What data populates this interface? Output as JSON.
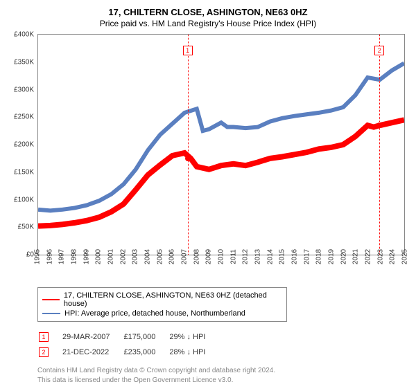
{
  "title": "17, CHILTERN CLOSE, ASHINGTON, NE63 0HZ",
  "subtitle": "Price paid vs. HM Land Registry's House Price Index (HPI)",
  "chart": {
    "type": "line",
    "background_color": "#ffffff",
    "border_color": "#888888",
    "ylim": [
      0,
      400
    ],
    "ytick_step": 50,
    "ytick_prefix": "£",
    "ytick_suffix": "K",
    "xlim": [
      1995,
      2025
    ],
    "xtick_step": 1,
    "grid": false,
    "label_fontsize": 10,
    "title_fontsize": 13,
    "series": [
      {
        "name": "price_paid",
        "label": "17, CHILTERN CLOSE, ASHINGTON, NE63 0HZ (detached house)",
        "color": "#ff0000",
        "line_width": 2,
        "data": [
          [
            1995,
            52
          ],
          [
            1996,
            53
          ],
          [
            1997,
            55
          ],
          [
            1998,
            58
          ],
          [
            1999,
            62
          ],
          [
            2000,
            68
          ],
          [
            2001,
            78
          ],
          [
            2002,
            92
          ],
          [
            2003,
            118
          ],
          [
            2004,
            145
          ],
          [
            2005,
            163
          ],
          [
            2006,
            180
          ],
          [
            2007,
            185
          ],
          [
            2007.5,
            175
          ],
          [
            2008,
            160
          ],
          [
            2009,
            155
          ],
          [
            2010,
            162
          ],
          [
            2011,
            165
          ],
          [
            2012,
            162
          ],
          [
            2013,
            168
          ],
          [
            2014,
            175
          ],
          [
            2015,
            178
          ],
          [
            2016,
            182
          ],
          [
            2017,
            186
          ],
          [
            2018,
            192
          ],
          [
            2019,
            195
          ],
          [
            2020,
            200
          ],
          [
            2021,
            215
          ],
          [
            2022,
            235
          ],
          [
            2022.5,
            232
          ],
          [
            2023,
            235
          ],
          [
            2024,
            240
          ],
          [
            2025,
            245
          ]
        ]
      },
      {
        "name": "hpi",
        "label": "HPI: Average price, detached house, Northumberland",
        "color": "#5a7fc0",
        "line_width": 1.5,
        "data": [
          [
            1995,
            82
          ],
          [
            1996,
            80
          ],
          [
            1997,
            82
          ],
          [
            1998,
            85
          ],
          [
            1999,
            90
          ],
          [
            2000,
            98
          ],
          [
            2001,
            110
          ],
          [
            2002,
            128
          ],
          [
            2003,
            155
          ],
          [
            2004,
            190
          ],
          [
            2005,
            218
          ],
          [
            2006,
            238
          ],
          [
            2007,
            258
          ],
          [
            2008,
            265
          ],
          [
            2008.5,
            225
          ],
          [
            2009,
            228
          ],
          [
            2010,
            240
          ],
          [
            2010.5,
            232
          ],
          [
            2011,
            232
          ],
          [
            2012,
            230
          ],
          [
            2013,
            232
          ],
          [
            2014,
            242
          ],
          [
            2015,
            248
          ],
          [
            2016,
            252
          ],
          [
            2017,
            255
          ],
          [
            2018,
            258
          ],
          [
            2019,
            262
          ],
          [
            2020,
            268
          ],
          [
            2021,
            290
          ],
          [
            2022,
            322
          ],
          [
            2023,
            318
          ],
          [
            2024,
            335
          ],
          [
            2025,
            348
          ]
        ]
      }
    ],
    "sale_markers": [
      {
        "n": 1,
        "x": 2007.25,
        "y": 175,
        "badge_y": 380
      },
      {
        "n": 2,
        "x": 2022.97,
        "y": 235,
        "badge_y": 380
      }
    ],
    "marker_dot_color": "#ff0000",
    "marker_line_color": "#ff0000",
    "marker_line_style": "dotted"
  },
  "yticks": [
    {
      "v": 0,
      "label": "£0"
    },
    {
      "v": 50,
      "label": "£50K"
    },
    {
      "v": 100,
      "label": "£100K"
    },
    {
      "v": 150,
      "label": "£150K"
    },
    {
      "v": 200,
      "label": "£200K"
    },
    {
      "v": 250,
      "label": "£250K"
    },
    {
      "v": 300,
      "label": "£300K"
    },
    {
      "v": 350,
      "label": "£350K"
    },
    {
      "v": 400,
      "label": "£400K"
    }
  ],
  "sales": [
    {
      "n": "1",
      "date": "29-MAR-2007",
      "price": "£175,000",
      "delta": "29% ↓ HPI"
    },
    {
      "n": "2",
      "date": "21-DEC-2022",
      "price": "£235,000",
      "delta": "28% ↓ HPI"
    }
  ],
  "footer_line1": "Contains HM Land Registry data © Crown copyright and database right 2024.",
  "footer_line2": "This data is licensed under the Open Government Licence v3.0."
}
